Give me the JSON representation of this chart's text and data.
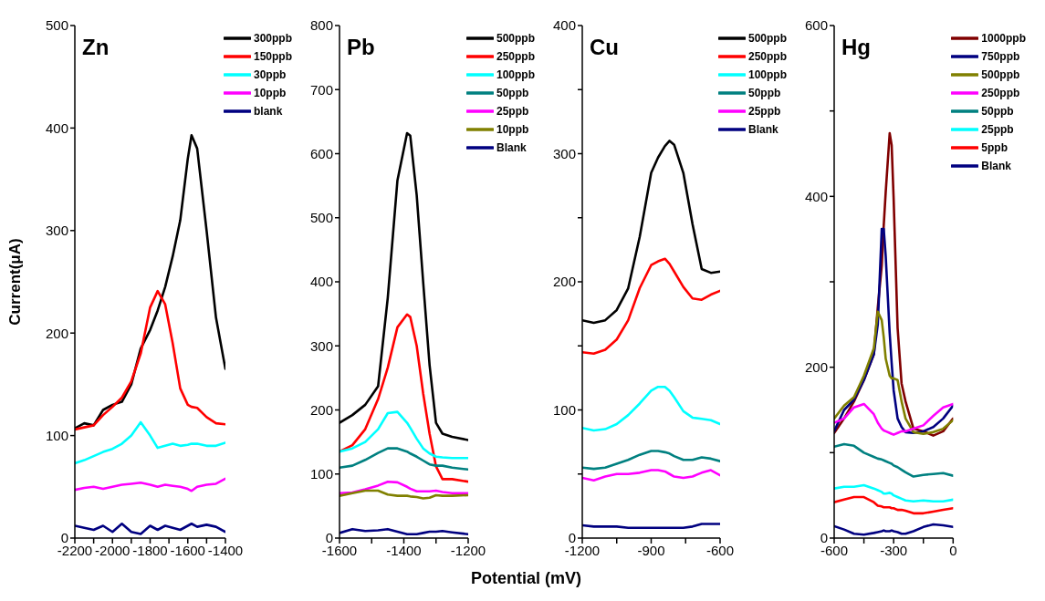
{
  "chart_data": [
    {
      "type": "line",
      "title": "Zn",
      "ylabel": "Current(μA)",
      "legend": "top right",
      "marker": "none",
      "line_style": "solid",
      "xlim": [
        -2200,
        -1400
      ],
      "xticks": [
        -2200,
        {
          "value": -2100,
          "label": null
        },
        -2000,
        {
          "value": -1900,
          "label": null
        },
        -1800,
        {
          "value": -1700,
          "label": null
        },
        -1600,
        {
          "value": -1500,
          "label": null
        },
        -1400
      ],
      "ylim": [
        0,
        500
      ],
      "yticks": [
        0,
        100,
        200,
        300,
        400,
        500
      ],
      "x": [
        -2200,
        -2150,
        -2100,
        -2050,
        -2000,
        -1950,
        -1900,
        -1850,
        -1800,
        -1760,
        -1720,
        -1680,
        -1640,
        -1600,
        -1580,
        -1550,
        -1500,
        -1450,
        -1400
      ],
      "series": [
        {
          "name": "300ppb",
          "color": "#000000",
          "values": [
            107,
            112,
            110,
            125,
            130,
            133,
            150,
            185,
            203,
            222,
            245,
            275,
            310,
            370,
            393,
            380,
            300,
            215,
            165
          ]
        },
        {
          "name": "150ppb",
          "color": "#ff0000",
          "values": [
            106,
            108,
            110,
            120,
            128,
            137,
            153,
            180,
            225,
            241,
            228,
            190,
            146,
            130,
            128,
            127,
            118,
            112,
            111
          ]
        },
        {
          "name": "30ppb",
          "color": "#00ffff",
          "values": [
            73,
            76,
            80,
            84,
            87,
            92,
            100,
            113,
            100,
            88,
            90,
            92,
            90,
            91,
            92,
            92,
            90,
            90,
            93
          ]
        },
        {
          "name": "10ppb",
          "color": "#ff00ff",
          "values": [
            47,
            49,
            50,
            48,
            50,
            52,
            53,
            54,
            52,
            50,
            52,
            51,
            50,
            48,
            46,
            50,
            52,
            53,
            58
          ]
        },
        {
          "name": "blank",
          "color": "#000080",
          "values": [
            12,
            10,
            8,
            12,
            6,
            14,
            6,
            4,
            12,
            8,
            12,
            10,
            8,
            12,
            14,
            11,
            13,
            11,
            6
          ]
        }
      ]
    },
    {
      "type": "line",
      "title": "Pb",
      "xlabel": "Potential (mV)",
      "legend": "top right",
      "marker": "none",
      "line_style": "solid",
      "xlim": [
        -1600,
        -1200
      ],
      "xticks": [
        -1600,
        {
          "value": -1500,
          "label": null
        },
        -1400,
        {
          "value": -1300,
          "label": null
        },
        -1200
      ],
      "ylim": [
        0,
        800
      ],
      "yticks": [
        0,
        100,
        200,
        300,
        400,
        500,
        600,
        700,
        800
      ],
      "x": [
        -1600,
        -1560,
        -1520,
        -1480,
        -1450,
        -1420,
        -1390,
        -1380,
        -1360,
        -1340,
        -1320,
        -1300,
        -1280,
        -1250,
        -1200
      ],
      "series": [
        {
          "name": "500ppb",
          "color": "#000000",
          "values": [
            180,
            192,
            208,
            237,
            375,
            558,
            632,
            628,
            535,
            400,
            270,
            180,
            163,
            158,
            153
          ]
        },
        {
          "name": "250ppb",
          "color": "#ff0000",
          "values": [
            135,
            145,
            170,
            217,
            266,
            329,
            349,
            345,
            300,
            226,
            163,
            112,
            92,
            92,
            88
          ]
        },
        {
          "name": "100ppb",
          "color": "#00ffff",
          "values": [
            135,
            140,
            150,
            170,
            195,
            197,
            180,
            172,
            155,
            140,
            132,
            127,
            126,
            125,
            125
          ]
        },
        {
          "name": "50ppb",
          "color": "#008080",
          "values": [
            110,
            113,
            122,
            133,
            140,
            140,
            135,
            132,
            127,
            121,
            115,
            113,
            113,
            110,
            107
          ]
        },
        {
          "name": "25ppb",
          "color": "#ff00ff",
          "values": [
            70,
            71,
            76,
            82,
            88,
            87,
            80,
            77,
            73,
            73,
            73,
            74,
            72,
            70,
            70
          ]
        },
        {
          "name": "10ppb",
          "color": "#808000",
          "values": [
            66,
            70,
            74,
            74,
            68,
            66,
            66,
            65,
            64,
            62,
            63,
            67,
            66,
            66,
            67
          ]
        },
        {
          "name": "Blank",
          "color": "#000080",
          "values": [
            8,
            14,
            11,
            12,
            14,
            10,
            6,
            6,
            6,
            8,
            10,
            10,
            11,
            9,
            6
          ]
        }
      ]
    },
    {
      "type": "line",
      "title": "Cu",
      "legend": "top right",
      "marker": "none",
      "line_style": "solid",
      "xlim": [
        -1200,
        -600
      ],
      "xticks": [
        -1200,
        {
          "value": -1050,
          "label": null
        },
        -900,
        {
          "value": -750,
          "label": null
        },
        -600
      ],
      "ylim": [
        0,
        400
      ],
      "yticks": [
        0,
        {
          "value": 50,
          "label": null
        },
        100,
        {
          "value": 150,
          "label": null
        },
        200,
        {
          "value": 250,
          "label": null
        },
        300,
        {
          "value": 350,
          "label": null
        },
        400
      ],
      "x": [
        -1200,
        -1150,
        -1100,
        -1050,
        -1000,
        -950,
        -900,
        -870,
        -840,
        -820,
        -800,
        -760,
        -720,
        -680,
        -640,
        -600
      ],
      "series": [
        {
          "name": "500ppb",
          "color": "#000000",
          "values": [
            170,
            168,
            170,
            178,
            195,
            235,
            285,
            297,
            306,
            310,
            307,
            285,
            245,
            210,
            207,
            208
          ]
        },
        {
          "name": "250ppb",
          "color": "#ff0000",
          "values": [
            145,
            144,
            147,
            155,
            170,
            195,
            213,
            216,
            218,
            214,
            208,
            196,
            187,
            186,
            190,
            193
          ]
        },
        {
          "name": "100ppb",
          "color": "#00ffff",
          "values": [
            86,
            84,
            85,
            89,
            96,
            105,
            115,
            118,
            118,
            115,
            110,
            99,
            94,
            93,
            92,
            89
          ]
        },
        {
          "name": "50ppb",
          "color": "#008080",
          "values": [
            55,
            54,
            55,
            58,
            61,
            65,
            68,
            68,
            67,
            66,
            64,
            61,
            61,
            63,
            62,
            60
          ]
        },
        {
          "name": "25ppb",
          "color": "#ff00ff",
          "values": [
            47,
            45,
            48,
            50,
            50,
            51,
            53,
            53,
            52,
            50,
            48,
            47,
            48,
            51,
            53,
            49
          ]
        },
        {
          "name": "Blank",
          "color": "#000080",
          "values": [
            10,
            9,
            9,
            9,
            8,
            8,
            8,
            8,
            8,
            8,
            8,
            8,
            9,
            11,
            11,
            11
          ]
        }
      ]
    },
    {
      "type": "line",
      "title": "Hg",
      "legend": "top right",
      "marker": "none",
      "line_style": "solid",
      "xlim": [
        -600,
        0
      ],
      "xticks": [
        -600,
        {
          "value": -450,
          "label": null
        },
        -300,
        {
          "value": -150,
          "label": null
        },
        0
      ],
      "ylim": [
        0,
        600
      ],
      "yticks": [
        0,
        {
          "value": 100,
          "label": null
        },
        200,
        {
          "value": 300,
          "label": null
        },
        400,
        {
          "value": 500,
          "label": null
        },
        600
      ],
      "x": [
        -600,
        -550,
        -500,
        -450,
        -400,
        -380,
        -360,
        -350,
        -340,
        -320,
        -310,
        -300,
        -280,
        -260,
        -240,
        -200,
        -150,
        -100,
        -50,
        0
      ],
      "series": [
        {
          "name": "1000ppb",
          "color": "#800000",
          "values": [
            123,
            140,
            160,
            185,
            215,
            270,
            319,
            366,
            405,
            474,
            460,
            397,
            246,
            181,
            160,
            128,
            125,
            120,
            125,
            140
          ]
        },
        {
          "name": "750ppb",
          "color": "#000080",
          "values": [
            125,
            150,
            162,
            185,
            215,
            250,
            362,
            362,
            330,
            240,
            205,
            173,
            140,
            130,
            124,
            123,
            125,
            130,
            140,
            155
          ]
        },
        {
          "name": "500ppb",
          "color": "#808000",
          "values": [
            140,
            155,
            165,
            190,
            222,
            265,
            255,
            235,
            210,
            190,
            187,
            187,
            185,
            160,
            140,
            124,
            122,
            124,
            128,
            138
          ]
        },
        {
          "name": "250ppb",
          "color": "#ff00ff",
          "values": [
            135,
            140,
            153,
            157,
            145,
            135,
            128,
            126,
            125,
            123,
            122,
            121,
            123,
            125,
            125,
            128,
            132,
            143,
            153,
            157
          ]
        },
        {
          "name": "50ppb",
          "color": "#008080",
          "values": [
            107,
            110,
            108,
            100,
            95,
            93,
            92,
            91,
            90,
            88,
            87,
            85,
            83,
            80,
            77,
            72,
            74,
            75,
            76,
            73
          ]
        },
        {
          "name": "25ppb",
          "color": "#00ffff",
          "values": [
            58,
            60,
            60,
            62,
            58,
            56,
            54,
            52,
            52,
            53,
            52,
            50,
            48,
            46,
            44,
            43,
            44,
            43,
            43,
            45
          ]
        },
        {
          "name": "5ppb",
          "color": "#ff0000",
          "values": [
            42,
            45,
            48,
            48,
            42,
            38,
            37,
            36,
            36,
            36,
            35,
            35,
            33,
            33,
            32,
            29,
            29,
            31,
            33,
            35
          ]
        },
        {
          "name": "Blank",
          "color": "#000080",
          "values": [
            14,
            10,
            5,
            4,
            6,
            7,
            8,
            9,
            8,
            8,
            9,
            8,
            7,
            5,
            5,
            8,
            13,
            16,
            15,
            13
          ]
        }
      ]
    }
  ]
}
